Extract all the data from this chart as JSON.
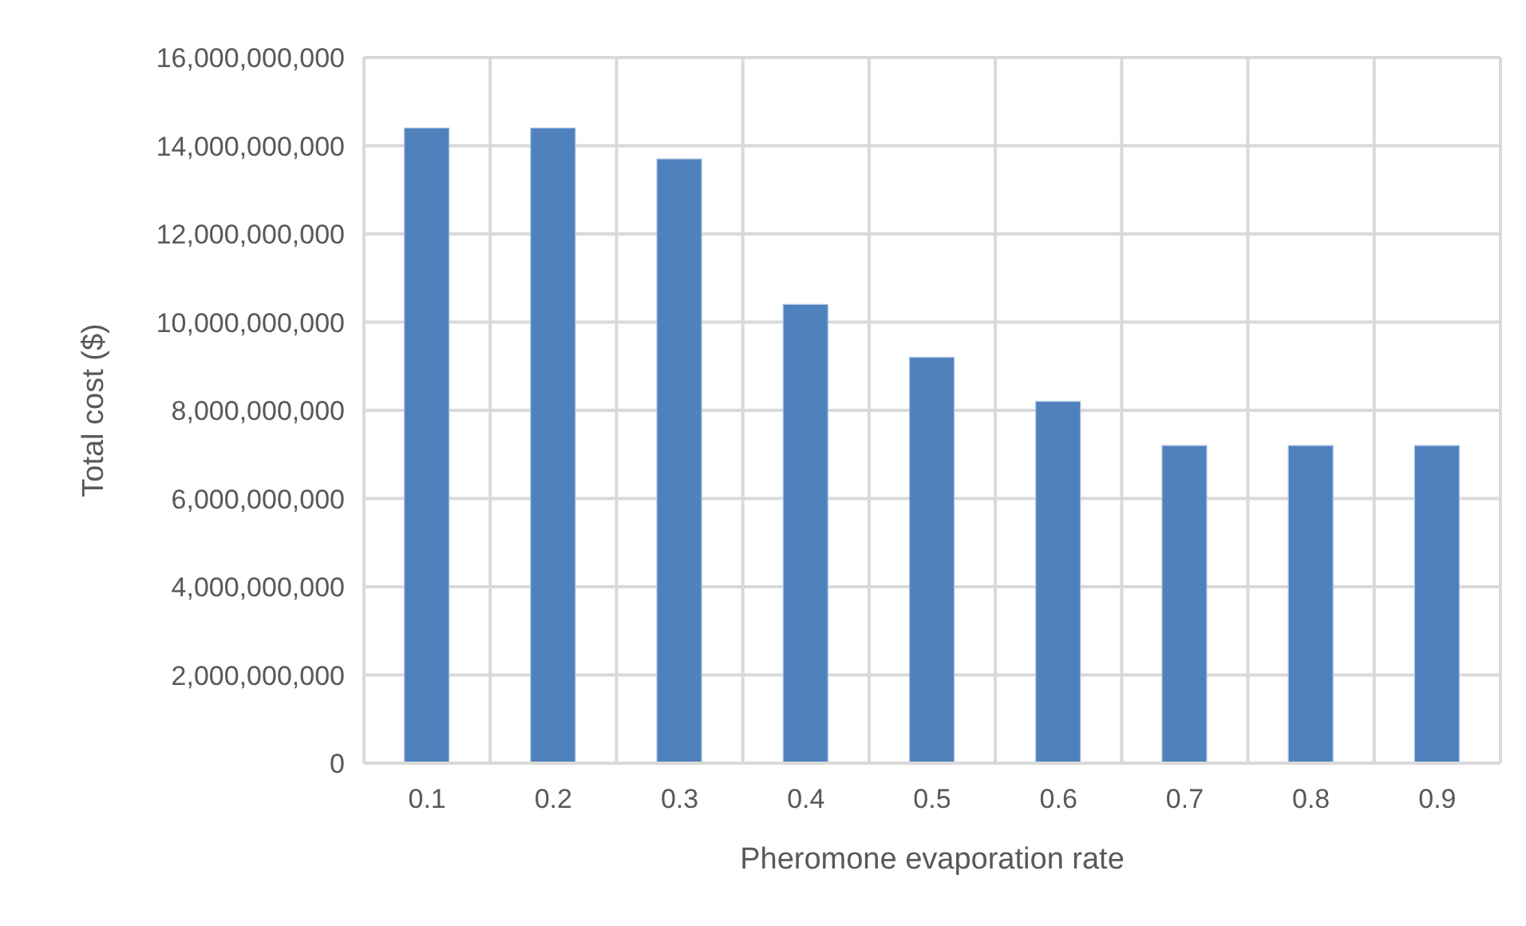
{
  "chart_data": {
    "type": "bar",
    "xlabel": "Pheromone evaporation rate",
    "ylabel": "Total cost ($)",
    "categories": [
      "0.1",
      "0.2",
      "0.3",
      "0.4",
      "0.5",
      "0.6",
      "0.7",
      "0.8",
      "0.9"
    ],
    "values": [
      14400000000,
      14400000000,
      13700000000,
      10400000000,
      9200000000,
      8200000000,
      7200000000,
      7200000000,
      7200000000
    ],
    "color": "#4f81bd",
    "ylim": [
      0,
      16000000000
    ],
    "yticks": [
      0,
      {
        "value": 2000000000,
        "label": "2,000,000,000"
      },
      {
        "value": 4000000000,
        "label": "4,000,000,000"
      },
      {
        "value": 6000000000,
        "label": "6,000,000,000"
      },
      {
        "value": 8000000000,
        "label": "8,000,000,000"
      },
      {
        "value": 10000000000,
        "label": "10,000,000,000"
      },
      {
        "value": 12000000000,
        "label": "12,000,000,000"
      },
      {
        "value": 14000000000,
        "label": "14,000,000,000"
      },
      {
        "value": 16000000000,
        "label": "16,000,000,000"
      }
    ],
    "grid": true,
    "legend": false
  }
}
